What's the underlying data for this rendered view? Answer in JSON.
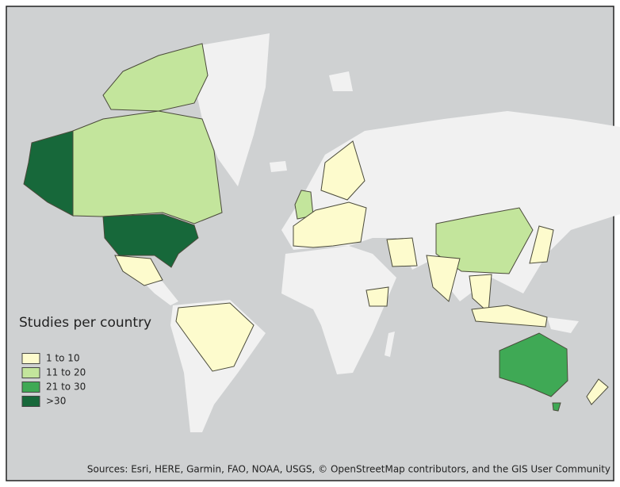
{
  "legend": {
    "title": "Studies per country",
    "items": [
      {
        "label": "1 to 10",
        "color": "#fdfbcd"
      },
      {
        "label": "11 to 20",
        "color": "#c3e59c"
      },
      {
        "label": "21 to 30",
        "color": "#3fa955"
      },
      {
        "label": ">30",
        "color": "#17683a"
      }
    ]
  },
  "sources": "Sources: Esri, HERE, Garmin, FAO, NOAA, USGS, © OpenStreetMap contributors, and the GIS User Community"
}
